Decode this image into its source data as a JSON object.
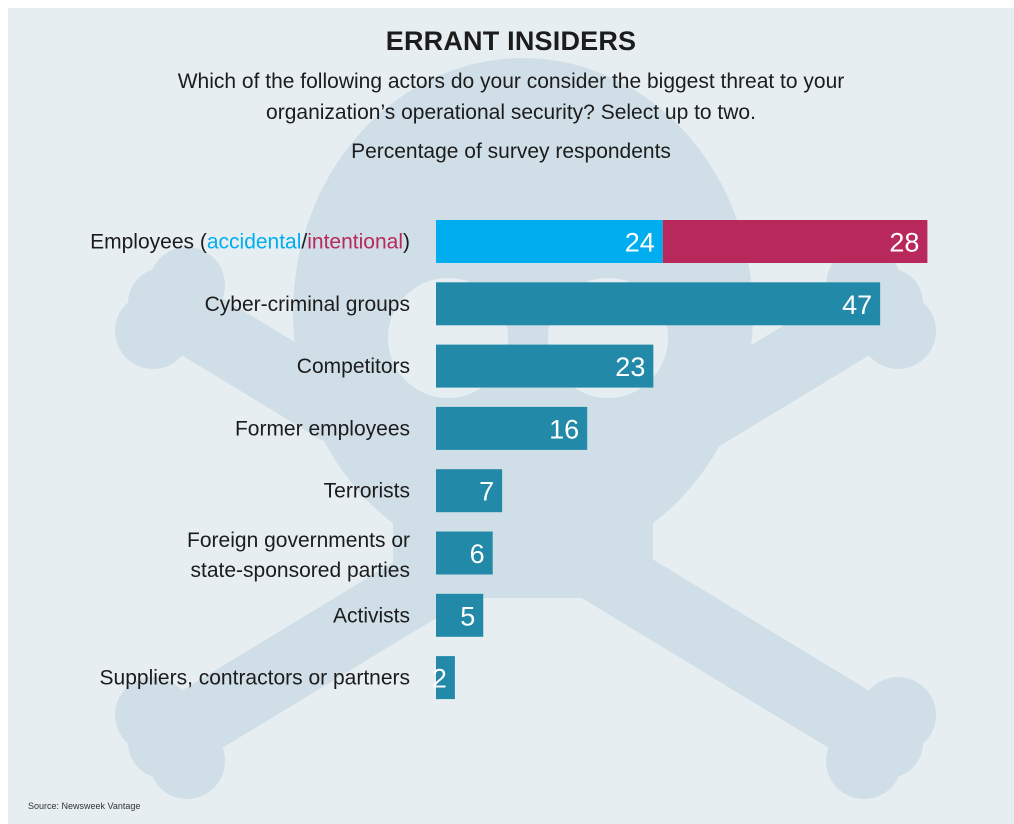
{
  "title": "ERRANT INSIDERS",
  "question": "Which of the following actors do your consider the biggest threat to your organization’s operational security? Select up to two.",
  "measure": "Percentage of survey respondents",
  "source": "Source: Newsweek Vantage",
  "colors": {
    "background": "#e7eef2",
    "skull": "#d0dfe7",
    "bar": "#228aa8",
    "accidental": "#00aeef",
    "intentional": "#b8285a",
    "text": "#1c1c1c"
  },
  "legend_parts": {
    "prefix": "Employees (",
    "accidental": "accidental",
    "slash": "/",
    "intentional": "intentional",
    "suffix": ")"
  },
  "chart_data": {
    "type": "bar",
    "orientation": "horizontal",
    "categories": [
      "Employees (accidental/intentional)",
      "Cyber-criminal groups",
      "Competitors",
      "Former employees",
      "Terrorists",
      "Foreign governments or state-sponsored parties",
      "Activists",
      "Suppliers, contractors or partners"
    ],
    "category_lines": [
      [
        "Employees (accidental/intentional)"
      ],
      [
        "Cyber-criminal groups"
      ],
      [
        "Competitors"
      ],
      [
        "Former employees"
      ],
      [
        "Terrorists"
      ],
      [
        "Foreign governments or",
        "state-sponsored parties"
      ],
      [
        "Activists"
      ],
      [
        "Suppliers, contractors or partners"
      ]
    ],
    "series": [
      {
        "name": "accidental",
        "values": [
          24,
          null,
          null,
          null,
          null,
          null,
          null,
          null
        ]
      },
      {
        "name": "intentional",
        "values": [
          28,
          null,
          null,
          null,
          null,
          null,
          null,
          null
        ]
      },
      {
        "values": [
          null,
          47,
          23,
          16,
          7,
          6,
          5,
          2
        ]
      }
    ],
    "ylabel": "Percentage of survey respondents"
  }
}
